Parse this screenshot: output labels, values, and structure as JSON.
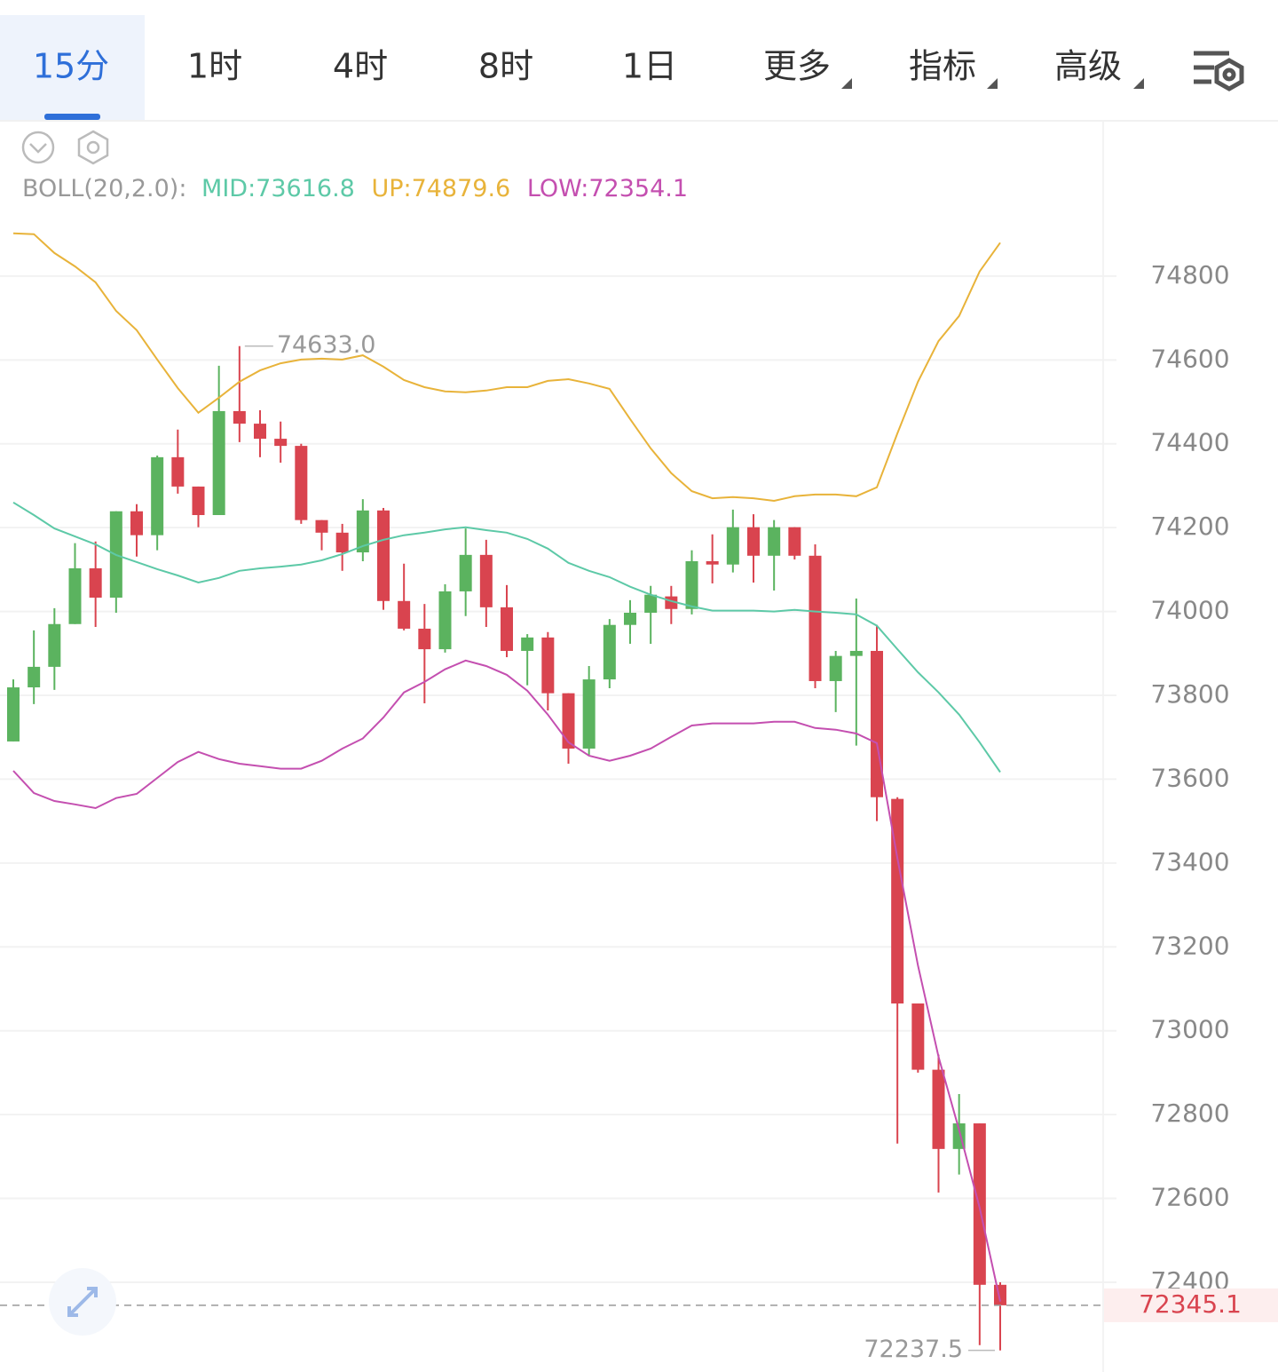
{
  "tabs": [
    "15分",
    "1时",
    "4时",
    "8时",
    "1日",
    "更多",
    "指标",
    "高级"
  ],
  "chart_data": {
    "type": "candlestick",
    "legend": {
      "label": "BOLL(20,2.0):",
      "mid": "MID:73616.8",
      "up": "UP:74879.6",
      "low": "LOW:72354.1"
    },
    "up_color": "#5bb35f",
    "down_color": "#d9444f",
    "open": [
      73690,
      73819,
      73868,
      73970,
      74103,
      74033,
      74239,
      74182,
      74368,
      74298,
      74230,
      74478,
      74448,
      74412,
      74395,
      74218,
      74188,
      74141,
      74241,
      74025,
      73959,
      73910,
      74048,
      74135,
      74010,
      73906,
      73938,
      73805,
      73673,
      73838,
      73968,
      73997,
      74036,
      74006,
      74120,
      74112,
      74201,
      74133,
      74201,
      74133,
      73834,
      73894,
      73906,
      73553,
      73065,
      72907,
      72718,
      72779,
      72394
    ],
    "high": [
      73838,
      73955,
      74008,
      74163,
      74167,
      74239,
      74256,
      74372,
      74434,
      74298,
      74586,
      74633,
      74480,
      74453,
      74400,
      74218,
      74209,
      74268,
      74247,
      74114,
      74018,
      74065,
      74198,
      74171,
      74063,
      73946,
      73951,
      73805,
      73870,
      73982,
      74027,
      74061,
      74061,
      74146,
      74184,
      74243,
      74232,
      74218,
      74201,
      74160,
      73906,
      74031,
      73968,
      73557,
      73065,
      72943,
      72849,
      72779,
      72400
    ],
    "low": [
      73690,
      73779,
      73813,
      73970,
      73963,
      73997,
      74131,
      74146,
      74281,
      74201,
      74230,
      74404,
      74368,
      74355,
      74209,
      74146,
      74097,
      74120,
      74004,
      73955,
      73781,
      73902,
      73989,
      73963,
      73891,
      73824,
      73764,
      73637,
      73658,
      73817,
      73923,
      73923,
      73970,
      73993,
      74067,
      74093,
      74069,
      74050,
      74124,
      73817,
      73760,
      73680,
      73500,
      72731,
      72900,
      72614,
      72657,
      72250,
      72237.5
    ],
    "close": [
      73819,
      73868,
      73970,
      74103,
      74033,
      74239,
      74182,
      74368,
      74298,
      74230,
      74478,
      74448,
      74412,
      74395,
      74218,
      74188,
      74141,
      74241,
      74025,
      73959,
      73910,
      74048,
      74135,
      74010,
      73906,
      73938,
      73805,
      73673,
      73838,
      73968,
      73997,
      74040,
      74006,
      74120,
      74112,
      74201,
      74133,
      74201,
      74133,
      73834,
      73894,
      73906,
      73557,
      73065,
      72907,
      72718,
      72779,
      72394,
      72345.1
    ],
    "overlays": [
      {
        "color": "#e8b33a",
        "values": [
          74902,
          74900,
          74855,
          74823,
          74785,
          74717,
          74671,
          74601,
          74533,
          74474,
          74510,
          74548,
          74575,
          74592,
          74601,
          74603,
          74601,
          74611,
          74584,
          74552,
          74535,
          74525,
          74523,
          74527,
          74535,
          74535,
          74550,
          74554,
          74544,
          74531,
          74459,
          74389,
          74330,
          74287,
          74270,
          74273,
          74270,
          74264,
          74275,
          74279,
          74279,
          74275,
          74296,
          74425,
          74548,
          74645,
          74705,
          74811,
          74879.6
        ]
      },
      {
        "color": "#5dc9a7",
        "values": [
          74260,
          74230,
          74198,
          74179,
          74160,
          74135,
          74118,
          74101,
          74086,
          74069,
          74080,
          74097,
          74103,
          74107,
          74112,
          74122,
          74137,
          74156,
          74171,
          74182,
          74188,
          74196,
          74201,
          74194,
          74188,
          74173,
          74150,
          74116,
          74097,
          74082,
          74059,
          74040,
          74025,
          74012,
          74002,
          74002,
          74002,
          74000,
          74004,
          74000,
          73997,
          73993,
          73966,
          73910,
          73855,
          73807,
          73754,
          73688,
          73616.8
        ]
      },
      {
        "color": "#c44fb0",
        "values": [
          73620,
          73567,
          73548,
          73540,
          73531,
          73555,
          73565,
          73603,
          73641,
          73665,
          73648,
          73637,
          73631,
          73625,
          73625,
          73644,
          73673,
          73697,
          73747,
          73807,
          73832,
          73862,
          73883,
          73870,
          73849,
          73811,
          73754,
          73688,
          73656,
          73644,
          73656,
          73673,
          73701,
          73728,
          73733,
          73733,
          73733,
          73737,
          73737,
          73722,
          73718,
          73709,
          73686,
          73411,
          73156,
          72938,
          72763,
          72578,
          72354.1
        ]
      }
    ],
    "ylim": [
      72186,
      75162
    ],
    "yticks": [
      74800,
      74600,
      74400,
      74200,
      74000,
      73800,
      73600,
      73400,
      73200,
      73000,
      72800,
      72600,
      72400
    ],
    "grid": true,
    "max_annotation": {
      "value": 74633,
      "label": "74633.0"
    },
    "min_annotation": 72237.5,
    "last_price": 72345.1
  }
}
